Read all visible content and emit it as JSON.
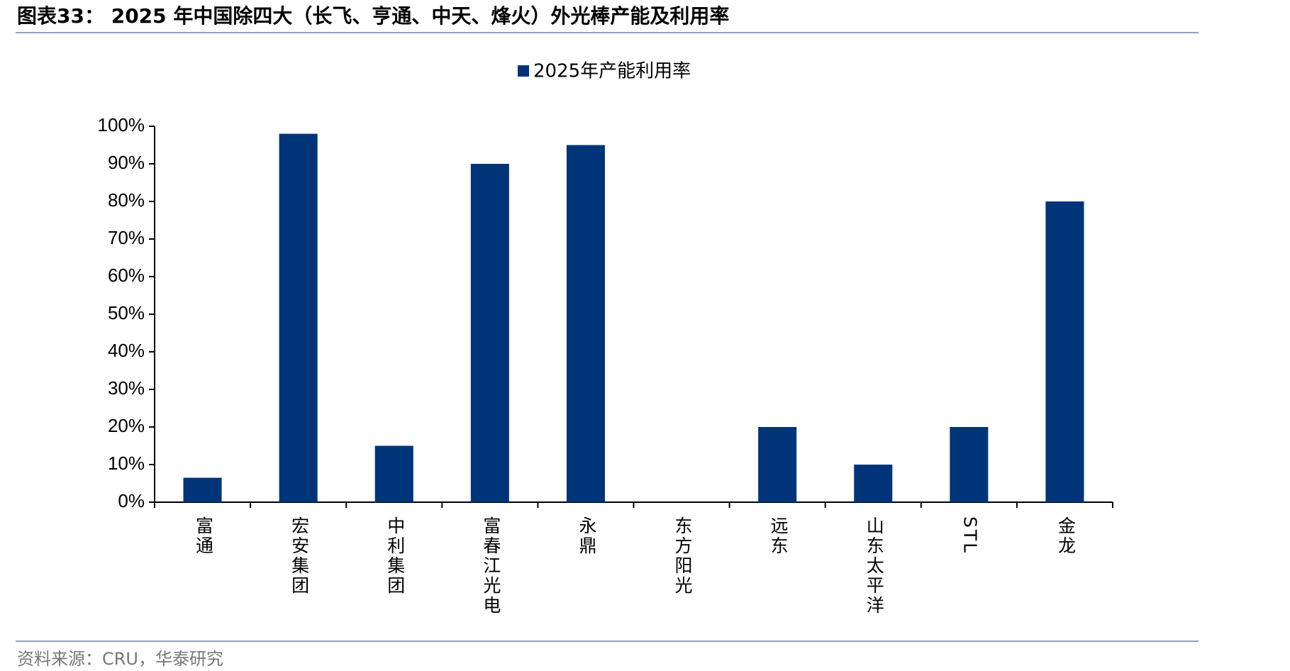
{
  "chart_data": {
    "type": "bar",
    "title": "图表33： 2025 年中国除四大（长飞、亨通、中天、烽火）外光棒产能及利用率",
    "source": "资料来源：CRU，华泰研究",
    "categories": [
      "富通",
      "宏安集团",
      "中利集团",
      "富春江光电",
      "永鼎",
      "东方阳光",
      "远东",
      "山东太平洋",
      "STL",
      "金龙"
    ],
    "series": [
      {
        "name": "2025年产能利用率",
        "color": "#003478",
        "values": [
          6.5,
          98,
          15,
          90,
          95,
          null,
          20,
          10,
          20,
          80
        ]
      }
    ],
    "ylim": [
      0,
      100
    ],
    "yticks": [
      {
        "value": 0,
        "label": "0%"
      },
      {
        "value": 10,
        "label": "10%"
      },
      {
        "value": 20,
        "label": "20%"
      },
      {
        "value": 30,
        "label": "30%"
      },
      {
        "value": 40,
        "label": "40%"
      },
      {
        "value": 50,
        "label": "50%"
      },
      {
        "value": 60,
        "label": "60%"
      },
      {
        "value": 70,
        "label": "70%"
      },
      {
        "value": 80,
        "label": "80%"
      },
      {
        "value": 90,
        "label": "90%"
      },
      {
        "value": 100,
        "label": "100%"
      }
    ],
    "grid": false
  }
}
